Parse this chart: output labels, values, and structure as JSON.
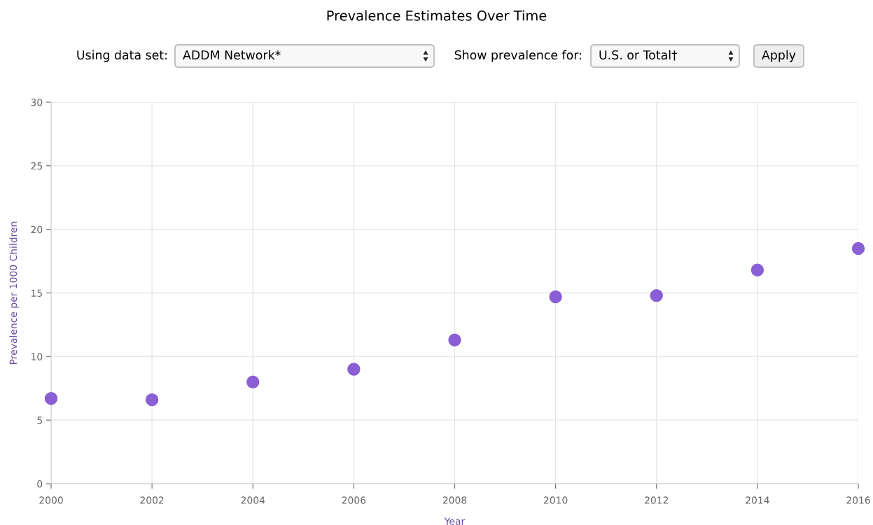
{
  "chart_data": {
    "type": "scatter",
    "title": "Prevalence Estimates Over Time",
    "xlabel": "Year",
    "ylabel": "Prevalence per 1000 Children",
    "annotations": [
      "Using data set:",
      "ADDM Network*",
      "Show prevalence for:",
      "U.S. or Total†",
      "Apply"
    ],
    "x": [
      2000,
      2002,
      2004,
      2006,
      2008,
      2010,
      2012,
      2014,
      2016
    ],
    "series": [
      {
        "color": "#8a5fd6",
        "values": [
          6.7,
          6.6,
          8.0,
          9.0,
          11.3,
          14.7,
          14.8,
          16.8,
          18.5
        ]
      }
    ],
    "xlim": [
      2000,
      2016
    ],
    "xticks": [
      2000,
      2002,
      2004,
      2006,
      2008,
      2010,
      2012,
      2014,
      2016
    ],
    "ylim": [
      0,
      30
    ],
    "yticks": [
      0,
      5,
      10,
      15,
      20,
      25,
      30
    ],
    "grid": true,
    "marker": "circle"
  }
}
